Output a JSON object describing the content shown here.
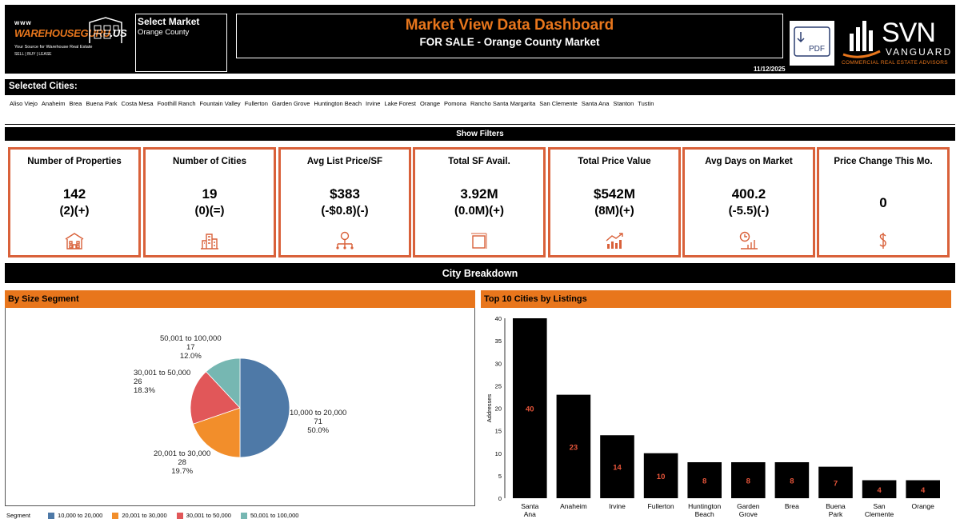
{
  "header": {
    "logo_www": "www",
    "logo_name_a": "WAREHOUSEGURU",
    "logo_name_b": ".US",
    "logo_tagline": "Your Source for Warehouse Real Estate",
    "logo_tagline2": "SELL | BUY | LEASE",
    "market_label": "Select Market",
    "market_value": "Orange County",
    "title": "Market View Data Dashboard",
    "subtitle": "FOR SALE - Orange County Market",
    "date": "11/12/2025",
    "pdf_label": "PDF",
    "svn_text": "SVN",
    "svn_vanguard": "VANGUARD",
    "svn_tagline": "COMMERCIAL REAL ESTATE ADVISORS"
  },
  "selected_cities": {
    "label": "Selected Cities:",
    "cities": [
      "Aliso Viejo",
      "Anaheim",
      "Brea",
      "Buena Park",
      "Costa Mesa",
      "Foothill Ranch",
      "Fountain Valley",
      "Fullerton",
      "Garden Grove",
      "Huntington Beach",
      "Irvine",
      "Lake Forest",
      "Orange",
      "Pomona",
      "Rancho Santa Margarita",
      "San Clemente",
      "Santa Ana",
      "Stanton",
      "Tustin"
    ]
  },
  "filters_label": "Show Filters",
  "kpis": [
    {
      "title": "Number of Properties",
      "value": "142",
      "delta": "(2)(+)"
    },
    {
      "title": "Number of Cities",
      "value": "19",
      "delta": "(0)(=)"
    },
    {
      "title": "Avg List Price/SF",
      "value": "$383",
      "delta": "(-$0.8)(-)"
    },
    {
      "title": "Total SF Avail.",
      "value": "3.92M",
      "delta": "(0.0M)(+)"
    },
    {
      "title": "Total Price Value",
      "value": "$542M",
      "delta": "(8M)(+)"
    },
    {
      "title": "Avg Days on Market",
      "value": "400.2",
      "delta": "(-5.5)(-)"
    },
    {
      "title": "Price Change This Mo.",
      "value": "0",
      "delta": ""
    }
  ],
  "breakdown_label": "City Breakdown",
  "colors": {
    "accent": "#e8761c",
    "card_border": "#d9613a",
    "bar_label": "#e8553a"
  },
  "chart_data": [
    {
      "type": "pie",
      "title": "By Size Segment",
      "legend_title": "Segment",
      "slices": [
        {
          "label": "10,000 to 20,000",
          "count": "71",
          "pct": "50.0%",
          "value": 71,
          "color": "#4e79a7"
        },
        {
          "label": "20,001 to 30,000",
          "count": "28",
          "pct": "19.7%",
          "value": 28,
          "color": "#f28e2b"
        },
        {
          "label": "30,001 to 50,000",
          "count": "26",
          "pct": "18.3%",
          "value": 26,
          "color": "#e15759"
        },
        {
          "label": "50,001 to 100,000",
          "count": "17",
          "pct": "12.0%",
          "value": 17,
          "color": "#76b7b2"
        }
      ]
    },
    {
      "type": "bar",
      "title": "Top 10 Cities by Listings",
      "ylabel": "Addresses",
      "ylim": [
        0,
        40
      ],
      "yticks": [
        0,
        5,
        10,
        15,
        20,
        25,
        30,
        35,
        40
      ],
      "categories": [
        "Santa Ana",
        "Anaheim",
        "Irvine",
        "Fullerton",
        "Huntington Beach",
        "Garden Grove",
        "Brea",
        "Buena Park",
        "San Clemente",
        "Orange"
      ],
      "values": [
        40,
        23,
        14,
        10,
        8,
        8,
        8,
        7,
        4,
        4
      ]
    }
  ]
}
